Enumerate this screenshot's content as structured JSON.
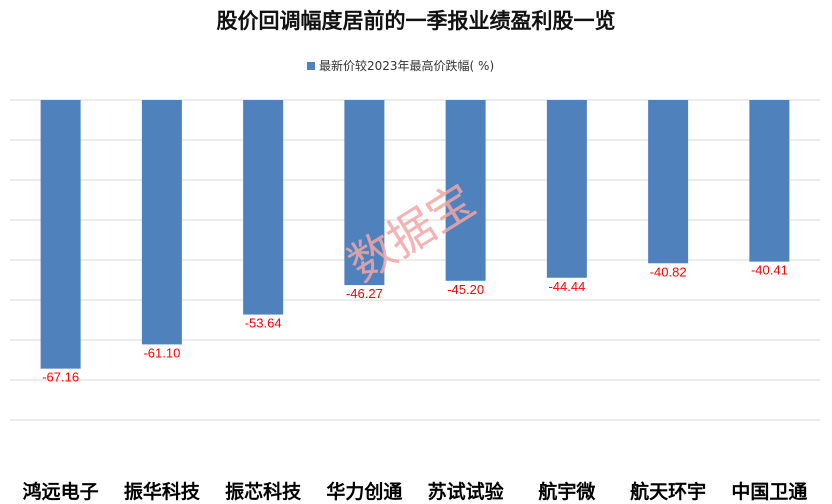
{
  "chart_data": {
    "type": "bar",
    "title": "股价回调幅度居前的一季报业绩盈利股一览",
    "categories": [
      "鸿远电子",
      "振华科技",
      "振芯科技",
      "华力创通",
      "苏试试验",
      "航宇微",
      "航天环宇",
      "中国卫通"
    ],
    "series": [
      {
        "name": "最新价较2023年最高价跌幅( %)",
        "values": [
          -67.16,
          -61.1,
          -53.64,
          -46.27,
          -45.2,
          -44.44,
          -40.82,
          -40.41
        ],
        "labels": [
          "-67.16",
          "-61.10",
          "-53.64",
          "-46.27",
          "-45.20",
          "-44.44",
          "-40.82",
          "-40.41"
        ],
        "color": "#4f81bd"
      }
    ],
    "ylim": [
      -80,
      0
    ],
    "grid": true,
    "legend_position": "top-center",
    "label_color": "#ff0000",
    "watermark": "数据宝"
  }
}
